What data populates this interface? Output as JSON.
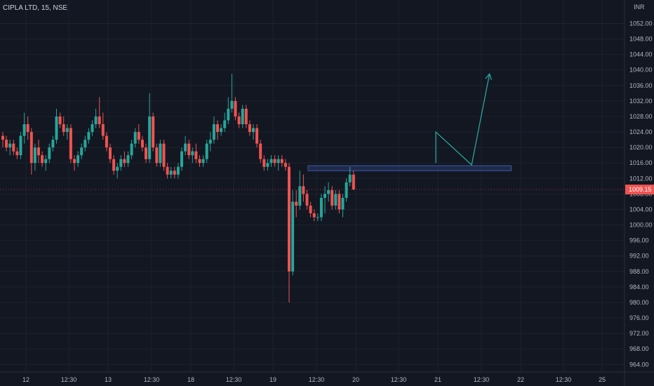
{
  "header": {
    "title": "CIPLA LTD, 15, NSE",
    "currency": "INR"
  },
  "colors": {
    "background": "#131722",
    "up": "#26a69a",
    "down": "#ef5350",
    "grid": "#1e222d",
    "axis_text": "#b2b5be",
    "zone": "#2a3a6e",
    "arrow": "#26a69a"
  },
  "chart_data": {
    "type": "candlestick",
    "title": "CIPLA LTD, 15, NSE",
    "ylabel": "INR",
    "ylim": [
      962,
      1055
    ],
    "y_ticks": [
      "1052.00",
      "1048.00",
      "1044.00",
      "1040.00",
      "1036.00",
      "1032.00",
      "1028.00",
      "1024.00",
      "1020.00",
      "1016.00",
      "1012.00",
      "1008.00",
      "1004.00",
      "1000.00",
      "996.00",
      "992.00",
      "988.00",
      "984.00",
      "980.00",
      "976.00",
      "972.00",
      "968.00",
      "964.00"
    ],
    "x_ticks": [
      "12",
      "12:30",
      "13",
      "12:30",
      "18",
      "12:30",
      "19",
      "12:30",
      "20",
      "12:30",
      "21",
      "12:30",
      "22",
      "12:30",
      "25"
    ],
    "last_price": "1009.15",
    "candles": [
      [
        1023,
        1024,
        1020,
        1022
      ],
      [
        1022,
        1023,
        1019,
        1020
      ],
      [
        1020,
        1022,
        1018,
        1021
      ],
      [
        1021,
        1022,
        1018,
        1019
      ],
      [
        1019,
        1020,
        1017,
        1018
      ],
      [
        1018,
        1024,
        1017,
        1023
      ],
      [
        1023,
        1029,
        1021,
        1026
      ],
      [
        1026,
        1028,
        1022,
        1024
      ],
      [
        1024,
        1025,
        1013,
        1016
      ],
      [
        1016,
        1021,
        1014,
        1020
      ],
      [
        1020,
        1022,
        1016,
        1018
      ],
      [
        1018,
        1019,
        1015,
        1016
      ],
      [
        1016,
        1018,
        1014,
        1017
      ],
      [
        1017,
        1021,
        1016,
        1020
      ],
      [
        1020,
        1023,
        1019,
        1022
      ],
      [
        1022,
        1030,
        1021,
        1028
      ],
      [
        1028,
        1029,
        1025,
        1026
      ],
      [
        1026,
        1028,
        1023,
        1024
      ],
      [
        1024,
        1026,
        1022,
        1025
      ],
      [
        1025,
        1026,
        1016,
        1017
      ],
      [
        1017,
        1018,
        1014,
        1016
      ],
      [
        1016,
        1019,
        1015,
        1018
      ],
      [
        1018,
        1021,
        1017,
        1020
      ],
      [
        1020,
        1023,
        1019,
        1022
      ],
      [
        1022,
        1025,
        1021,
        1024
      ],
      [
        1024,
        1027,
        1023,
        1026
      ],
      [
        1026,
        1030,
        1025,
        1028
      ],
      [
        1028,
        1033,
        1025,
        1026
      ],
      [
        1026,
        1029,
        1022,
        1023
      ],
      [
        1023,
        1024,
        1019,
        1020
      ],
      [
        1020,
        1021,
        1016,
        1017
      ],
      [
        1017,
        1018,
        1013,
        1014
      ],
      [
        1014,
        1016,
        1012,
        1015
      ],
      [
        1015,
        1018,
        1014,
        1017
      ],
      [
        1017,
        1019,
        1015,
        1016
      ],
      [
        1016,
        1019,
        1015,
        1018
      ],
      [
        1018,
        1022,
        1017,
        1021
      ],
      [
        1021,
        1025,
        1020,
        1024
      ],
      [
        1024,
        1026,
        1021,
        1022
      ],
      [
        1022,
        1023,
        1019,
        1020
      ],
      [
        1020,
        1021,
        1016,
        1017
      ],
      [
        1017,
        1034,
        1016,
        1028
      ],
      [
        1028,
        1029,
        1019,
        1020
      ],
      [
        1020,
        1021,
        1015,
        1016
      ],
      [
        1016,
        1022,
        1015,
        1021
      ],
      [
        1021,
        1022,
        1014,
        1015
      ],
      [
        1015,
        1016,
        1012,
        1013
      ],
      [
        1013,
        1015,
        1012,
        1014
      ],
      [
        1014,
        1015,
        1012,
        1013
      ],
      [
        1013,
        1016,
        1012,
        1015
      ],
      [
        1015,
        1020,
        1014,
        1019
      ],
      [
        1019,
        1023,
        1018,
        1021
      ],
      [
        1021,
        1022,
        1017,
        1018
      ],
      [
        1018,
        1020,
        1016,
        1019
      ],
      [
        1019,
        1021,
        1016,
        1017
      ],
      [
        1017,
        1018,
        1015,
        1016
      ],
      [
        1016,
        1018,
        1015,
        1017
      ],
      [
        1017,
        1022,
        1016,
        1021
      ],
      [
        1021,
        1024,
        1019,
        1022
      ],
      [
        1022,
        1028,
        1021,
        1026
      ],
      [
        1026,
        1027,
        1022,
        1024
      ],
      [
        1024,
        1026,
        1023,
        1025
      ],
      [
        1025,
        1029,
        1024,
        1027
      ],
      [
        1027,
        1033,
        1026,
        1030
      ],
      [
        1030,
        1039,
        1029,
        1032
      ],
      [
        1032,
        1033,
        1027,
        1028
      ],
      [
        1028,
        1029,
        1025,
        1026
      ],
      [
        1026,
        1031,
        1025,
        1030
      ],
      [
        1030,
        1031,
        1025,
        1026
      ],
      [
        1026,
        1027,
        1023,
        1024
      ],
      [
        1024,
        1026,
        1022,
        1025
      ],
      [
        1025,
        1026,
        1020,
        1021
      ],
      [
        1021,
        1022,
        1016,
        1017
      ],
      [
        1017,
        1018,
        1014,
        1015
      ],
      [
        1015,
        1017,
        1014,
        1016
      ],
      [
        1016,
        1018,
        1015,
        1017
      ],
      [
        1017,
        1018,
        1015,
        1016
      ],
      [
        1016,
        1018,
        1014,
        1017
      ],
      [
        1017,
        1018,
        1015,
        1016
      ],
      [
        1016,
        1017,
        1014,
        1015
      ],
      [
        1015,
        1016,
        980,
        988
      ],
      [
        988,
        1009,
        987,
        1006
      ],
      [
        1006,
        1009,
        1002,
        1005
      ],
      [
        1005,
        1014,
        1004,
        1010
      ],
      [
        1010,
        1013,
        1006,
        1008
      ],
      [
        1008,
        1009,
        1004,
        1005
      ],
      [
        1005,
        1006,
        1002,
        1003
      ],
      [
        1003,
        1004,
        1001,
        1002
      ],
      [
        1002,
        1003,
        1001,
        1002
      ],
      [
        1002,
        1008,
        1001,
        1007
      ],
      [
        1007,
        1010,
        1003,
        1008
      ],
      [
        1008,
        1011,
        1006,
        1009
      ],
      [
        1009,
        1010,
        1004,
        1005
      ],
      [
        1005,
        1009,
        1004,
        1008
      ],
      [
        1008,
        1009,
        1003,
        1004
      ],
      [
        1004,
        1008,
        1002,
        1007
      ],
      [
        1007,
        1012,
        1006,
        1011
      ],
      [
        1011,
        1015,
        1010,
        1013
      ],
      [
        1013,
        1014,
        1009,
        1009.15
      ]
    ],
    "annotations": {
      "zone": {
        "y_top": 1015.3,
        "y_bottom": 1014.0,
        "x_start_index": 90,
        "x_end_index": 136
      },
      "projection_path": [
        {
          "i": 121,
          "y": 1016
        },
        {
          "i": 121,
          "y": 1024
        },
        {
          "i": 131,
          "y": 1015.5
        },
        {
          "i": 136,
          "y": 1039
        }
      ]
    }
  }
}
